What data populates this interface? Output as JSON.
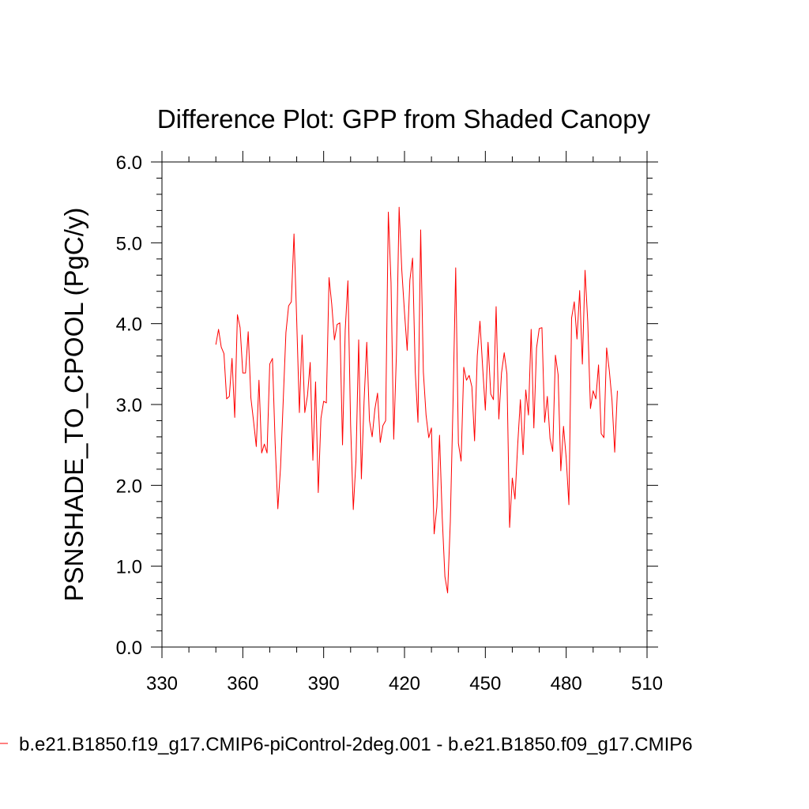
{
  "chart_data": {
    "type": "line",
    "title": "Difference Plot: GPP from Shaded Canopy",
    "ylabel": "PSNSHADE_TO_CPOOL  (PgC/y)",
    "xlim": [
      330,
      510
    ],
    "ylim": [
      0,
      6
    ],
    "x_ticks": [
      "330",
      "360",
      "390",
      "420",
      "450",
      "480",
      "510"
    ],
    "y_ticks": [
      "0.0",
      "1.0",
      "2.0",
      "3.0",
      "4.0",
      "5.0",
      "6.0"
    ],
    "grid": false,
    "legend_position": "bottom",
    "series": [
      {
        "name": "b.e21.B1850.f19_g17.CMIP6-piControl-2deg.001 - b.e21.B1850.f09_g17.CMIP6",
        "color": "#ff0000",
        "x_start": 350,
        "x_step": 1,
        "values": [
          3.74,
          3.93,
          3.71,
          3.63,
          3.07,
          3.1,
          3.57,
          2.84,
          4.11,
          3.95,
          3.39,
          3.39,
          3.9,
          3.08,
          2.79,
          2.48,
          3.3,
          2.4,
          2.51,
          2.4,
          3.5,
          3.57,
          2.52,
          1.71,
          2.22,
          3.05,
          3.89,
          4.22,
          4.27,
          5.11,
          4.04,
          2.9,
          3.86,
          2.9,
          3.11,
          3.52,
          2.31,
          3.28,
          1.91,
          2.83,
          3.04,
          3.02,
          4.57,
          4.24,
          3.8,
          3.99,
          4.01,
          2.5,
          3.92,
          4.53,
          2.75,
          1.7,
          2.31,
          3.8,
          2.08,
          3.04,
          3.77,
          2.8,
          2.6,
          2.94,
          3.14,
          2.53,
          2.74,
          2.8,
          5.38,
          4.51,
          2.57,
          3.62,
          5.44,
          4.66,
          4.14,
          3.67,
          4.54,
          4.81,
          3.4,
          2.78,
          5.16,
          3.4,
          2.87,
          2.59,
          2.71,
          1.4,
          1.73,
          2.62,
          1.6,
          0.87,
          0.67,
          1.55,
          3.01,
          4.69,
          2.52,
          2.3,
          3.46,
          3.3,
          3.36,
          3.22,
          2.55,
          3.6,
          4.03,
          3.46,
          2.93,
          3.77,
          3.13,
          3.06,
          4.21,
          2.82,
          3.39,
          3.64,
          3.38,
          1.48,
          2.09,
          1.83,
          2.5,
          3.06,
          2.38,
          3.18,
          2.87,
          3.93,
          2.71,
          3.7,
          3.94,
          3.95,
          2.78,
          3.1,
          2.58,
          2.42,
          3.61,
          3.37,
          2.18,
          2.73,
          2.34,
          1.76,
          4.07,
          4.27,
          3.81,
          4.41,
          3.5,
          4.66,
          4.02,
          2.95,
          3.17,
          3.07,
          3.49,
          2.64,
          2.59,
          3.7,
          3.42,
          3.05,
          2.41,
          3.17
        ]
      }
    ]
  }
}
